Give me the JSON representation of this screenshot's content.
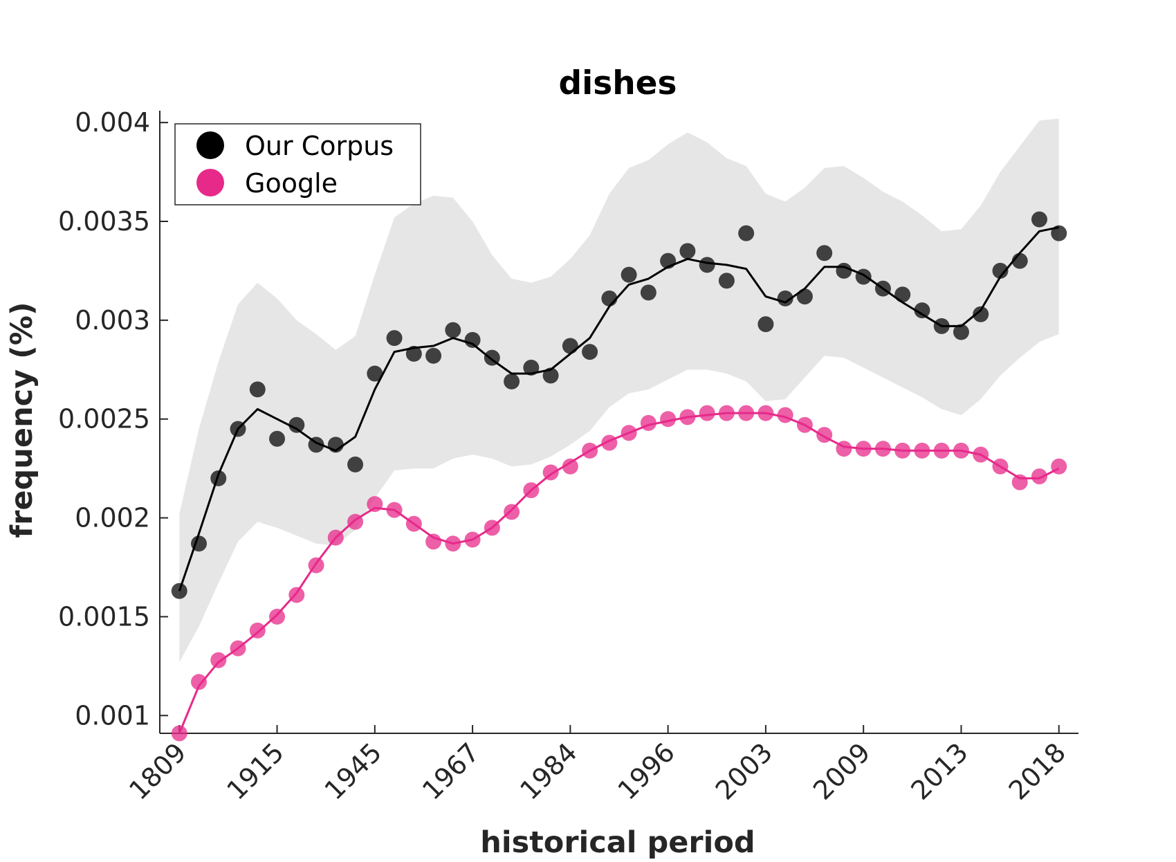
{
  "chart_data": {
    "type": "line",
    "title": "dishes",
    "xlabel": "historical period",
    "ylabel": "frequency (%)",
    "x_tick_labels": [
      "1809",
      "1915",
      "1945",
      "1967",
      "1984",
      "1996",
      "2003",
      "2009",
      "2013",
      "2018"
    ],
    "y_ticks": [
      0.001,
      0.0015,
      0.002,
      0.0025,
      0.003,
      0.0035,
      0.004
    ],
    "y_tick_labels": [
      "0.001",
      "0.0015",
      "0.002",
      "0.0025",
      "0.003",
      "0.0035",
      "0.004"
    ],
    "ylim": [
      0.00091,
      0.00406
    ],
    "x": [
      1,
      2,
      3,
      4,
      5,
      6,
      7,
      8,
      9,
      10,
      11,
      12,
      13,
      14,
      15,
      16,
      17,
      18,
      19,
      20,
      21,
      22,
      23,
      24,
      25,
      26,
      27,
      28,
      29,
      30,
      31,
      32,
      33,
      34,
      35,
      36,
      37,
      38,
      39,
      40,
      41,
      42,
      43,
      44,
      45,
      46
    ],
    "x_tick_positions": [
      1,
      6,
      11,
      16,
      21,
      26,
      31,
      36,
      41,
      46
    ],
    "xlim": [
      0,
      47
    ],
    "legend": {
      "position": "top-left",
      "entries": [
        "Our Corpus",
        "Google"
      ]
    },
    "colors": {
      "corpus": "#000000",
      "google": "#e7298a",
      "band": "#e6e6e6"
    },
    "series": [
      {
        "name": "Our Corpus",
        "points": [
          0.00163,
          0.00187,
          0.0022,
          0.00245,
          0.00265,
          0.0024,
          0.00247,
          0.00237,
          0.00237,
          0.00227,
          0.00273,
          0.00291,
          0.00283,
          0.00282,
          0.00295,
          0.0029,
          0.00281,
          0.00269,
          0.00276,
          0.00272,
          0.00287,
          0.00284,
          0.00311,
          0.00323,
          0.00314,
          0.0033,
          0.00335,
          0.00328,
          0.0032,
          0.00344,
          0.00298,
          0.00311,
          0.00312,
          0.00334,
          0.00325,
          0.00322,
          0.00316,
          0.00313,
          0.00305,
          0.00297,
          0.00294,
          0.00303,
          0.00325,
          0.0033,
          0.00351,
          0.00344
        ],
        "smooth": [
          0.00163,
          0.00192,
          0.00222,
          0.00245,
          0.00255,
          0.0025,
          0.00245,
          0.00238,
          0.00234,
          0.00241,
          0.00265,
          0.00284,
          0.00286,
          0.00287,
          0.00291,
          0.00288,
          0.0028,
          0.00273,
          0.00273,
          0.00275,
          0.00283,
          0.00291,
          0.00307,
          0.00318,
          0.00321,
          0.00327,
          0.00331,
          0.00329,
          0.00328,
          0.00326,
          0.00312,
          0.00309,
          0.00316,
          0.00327,
          0.00327,
          0.00323,
          0.00316,
          0.00309,
          0.00303,
          0.00297,
          0.00297,
          0.00305,
          0.00322,
          0.00334,
          0.00345,
          0.00347
        ],
        "band_upper": [
          0.00202,
          0.00245,
          0.00279,
          0.00308,
          0.00319,
          0.00311,
          0.003,
          0.00293,
          0.00285,
          0.00292,
          0.00323,
          0.00352,
          0.00359,
          0.00363,
          0.00362,
          0.0035,
          0.00333,
          0.00321,
          0.00319,
          0.00322,
          0.00331,
          0.00343,
          0.00364,
          0.00377,
          0.00381,
          0.00389,
          0.00395,
          0.0039,
          0.00382,
          0.00378,
          0.00364,
          0.0036,
          0.00367,
          0.00377,
          0.00378,
          0.00372,
          0.00365,
          0.0036,
          0.00353,
          0.00345,
          0.00346,
          0.00358,
          0.00375,
          0.00388,
          0.00401,
          0.00402
        ],
        "band_lower": [
          0.00127,
          0.00145,
          0.00167,
          0.00188,
          0.00198,
          0.00195,
          0.00191,
          0.00187,
          0.00186,
          0.00194,
          0.0021,
          0.00224,
          0.00225,
          0.00225,
          0.0023,
          0.00232,
          0.0023,
          0.00226,
          0.00227,
          0.00231,
          0.00237,
          0.00244,
          0.00256,
          0.00263,
          0.00265,
          0.0027,
          0.00275,
          0.00275,
          0.00273,
          0.00269,
          0.00259,
          0.0026,
          0.00271,
          0.00282,
          0.00281,
          0.00276,
          0.00271,
          0.00266,
          0.00261,
          0.00255,
          0.00252,
          0.0026,
          0.00272,
          0.00281,
          0.00289,
          0.00293
        ]
      },
      {
        "name": "Google",
        "points": [
          0.00091,
          0.00117,
          0.00128,
          0.00134,
          0.00143,
          0.0015,
          0.00161,
          0.00176,
          0.0019,
          0.00198,
          0.00207,
          0.00204,
          0.00197,
          0.00188,
          0.00187,
          0.00189,
          0.00195,
          0.00203,
          0.00214,
          0.00223,
          0.00226,
          0.00234,
          0.00238,
          0.00243,
          0.00248,
          0.0025,
          0.00251,
          0.00253,
          0.00253,
          0.00253,
          0.00253,
          0.00252,
          0.00247,
          0.00242,
          0.00235,
          0.00235,
          0.00235,
          0.00234,
          0.00234,
          0.00234,
          0.00234,
          0.00232,
          0.00226,
          0.00218,
          0.00221,
          0.00226
        ],
        "smooth": [
          0.00091,
          0.00115,
          0.00127,
          0.00134,
          0.00142,
          0.00151,
          0.00162,
          0.00177,
          0.0019,
          0.00199,
          0.00205,
          0.00204,
          0.00197,
          0.0019,
          0.00187,
          0.00189,
          0.00195,
          0.00204,
          0.00214,
          0.00222,
          0.00228,
          0.00234,
          0.00239,
          0.00243,
          0.00247,
          0.00249,
          0.00251,
          0.00252,
          0.00253,
          0.00253,
          0.00253,
          0.00251,
          0.00247,
          0.00241,
          0.00236,
          0.00235,
          0.00235,
          0.00234,
          0.00234,
          0.00234,
          0.00234,
          0.00232,
          0.00226,
          0.0022,
          0.0022,
          0.00225
        ]
      }
    ]
  }
}
